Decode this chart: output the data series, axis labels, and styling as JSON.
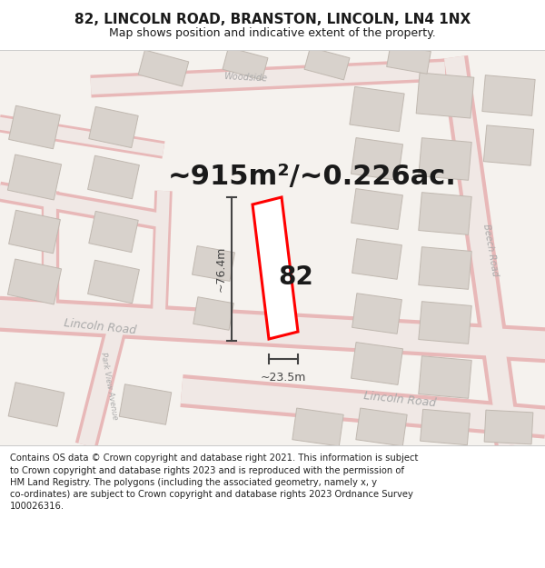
{
  "title": "82, LINCOLN ROAD, BRANSTON, LINCOLN, LN4 1NX",
  "subtitle": "Map shows position and indicative extent of the property.",
  "area_label": "~915m²/~0.226ac.",
  "dim_width": "~23.5m",
  "dim_height": "~76.4m",
  "plot_number": "82",
  "footer": "Contains OS data © Crown copyright and database right 2021. This information is subject to Crown copyright and database rights 2023 and is reproduced with the permission of HM Land Registry. The polygons (including the associated geometry, namely x, y co-ordinates) are subject to Crown copyright and database rights 2023 Ordnance Survey 100026316.",
  "map_bg": "#f5f2ee",
  "road_outline_color": "#e8b8b8",
  "road_center_color": "#f0e8e5",
  "building_fill": "#d8d2cc",
  "building_edge": "#c0b8b0",
  "highlight_color": "#ff0000",
  "highlight_fill": "#ffffff",
  "text_color": "#1a1a1a",
  "road_label_color": "#aaaaaa",
  "dim_line_color": "#444444",
  "title_fontsize": 11,
  "subtitle_fontsize": 9,
  "area_fontsize": 22,
  "plot_num_fontsize": 20,
  "dim_fontsize": 9,
  "footer_fontsize": 7.2
}
